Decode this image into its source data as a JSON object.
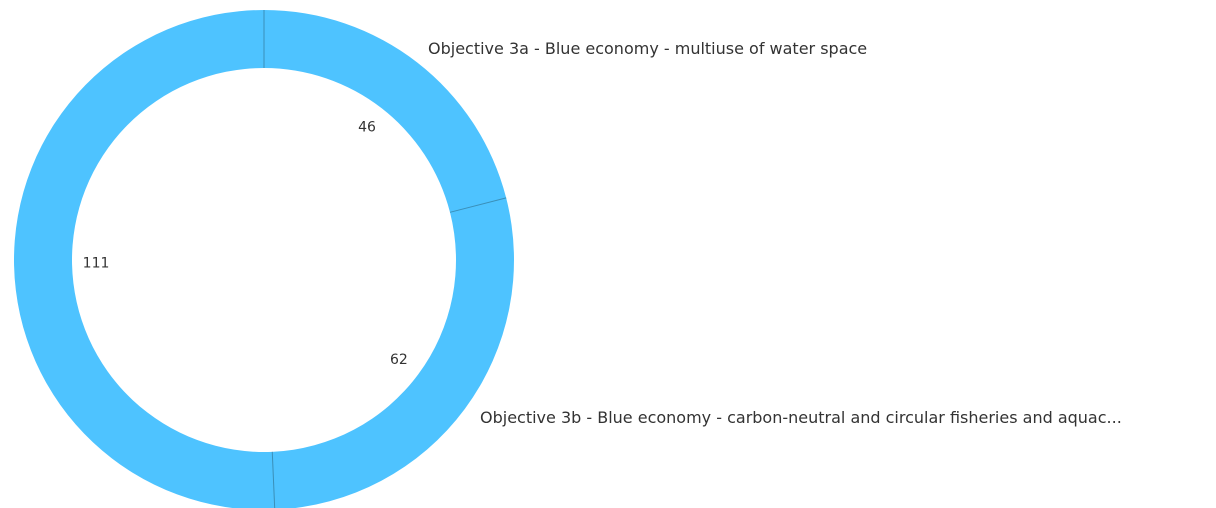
{
  "chart_data": {
    "type": "pie",
    "variant": "donut",
    "title": "",
    "slices": [
      {
        "label": "Objective 3a - Blue economy - multiuse of water space",
        "value": 46
      },
      {
        "label": "Objective 3b - Blue economy - carbon-neutral and circular fisheries and aquac...",
        "value": 62
      },
      {
        "label": "",
        "value": 111
      }
    ],
    "colors": {
      "slice": "#4ec3ff",
      "separator": "#3a8fb8",
      "text": "#333333",
      "background": "#ffffff"
    },
    "start_angle": "12 o'clock",
    "direction": "clockwise"
  }
}
